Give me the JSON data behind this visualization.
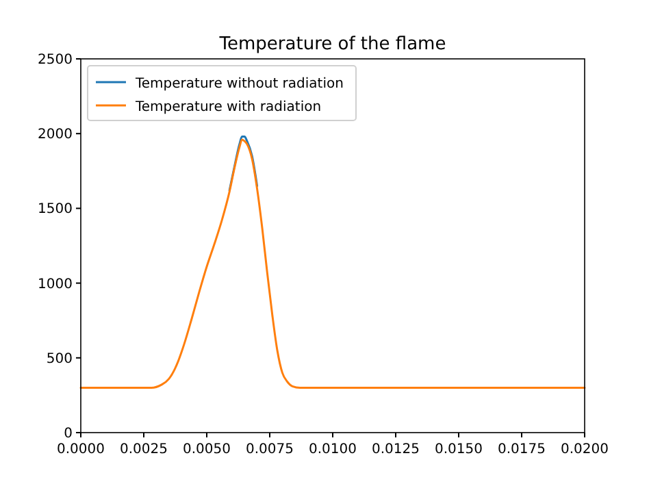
{
  "chart_data": {
    "type": "line",
    "title": "Temperature of the flame",
    "x": [
      0,
      0.001,
      0.002,
      0.0028,
      0.0032,
      0.0035,
      0.0038,
      0.0041,
      0.0044,
      0.0047,
      0.005,
      0.0053,
      0.0056,
      0.0059,
      0.0061,
      0.0063,
      0.0064,
      0.0065,
      0.0066,
      0.0068,
      0.007,
      0.0072,
      0.0074,
      0.0076,
      0.0078,
      0.008,
      0.0082,
      0.0084,
      0.0087,
      0.009,
      0.0095,
      0.01,
      0.012,
      0.015,
      0.02
    ],
    "series": [
      {
        "name": "Temperature without radiation",
        "color": "#1f77b4",
        "values": [
          null,
          null,
          null,
          null,
          null,
          null,
          null,
          null,
          null,
          null,
          null,
          null,
          null,
          1620,
          1780,
          1930,
          1980,
          1980,
          1950,
          1850,
          1650,
          null,
          null,
          null,
          null,
          null,
          null,
          null,
          null,
          null,
          null,
          null,
          null,
          null,
          null
        ]
      },
      {
        "name": "Temperature with radiation",
        "color": "#ff7f0e",
        "values": [
          300,
          300,
          300,
          300,
          320,
          360,
          450,
          590,
          760,
          940,
          1110,
          1260,
          1420,
          1610,
          1770,
          1910,
          1960,
          1950,
          1930,
          1830,
          1630,
          1370,
          1070,
          790,
          550,
          400,
          340,
          310,
          300,
          300,
          300,
          300,
          300,
          300,
          300
        ]
      }
    ],
    "xlim": [
      0,
      0.02
    ],
    "xticks": [
      {
        "value": 0,
        "label": "0.0000"
      },
      {
        "value": 0.0025,
        "label": "0.0025"
      },
      {
        "value": 0.005,
        "label": "0.0050"
      },
      {
        "value": 0.0075,
        "label": "0.0075"
      },
      {
        "value": 0.01,
        "label": "0.0100"
      },
      {
        "value": 0.0125,
        "label": "0.0125"
      },
      {
        "value": 0.015,
        "label": "0.0150"
      },
      {
        "value": 0.0175,
        "label": "0.0175"
      },
      {
        "value": 0.02,
        "label": "0.0200"
      }
    ],
    "ylim": [
      0,
      2500
    ],
    "yticks": [
      0,
      500,
      1000,
      1500,
      2000,
      2500
    ],
    "legend": "top left"
  }
}
